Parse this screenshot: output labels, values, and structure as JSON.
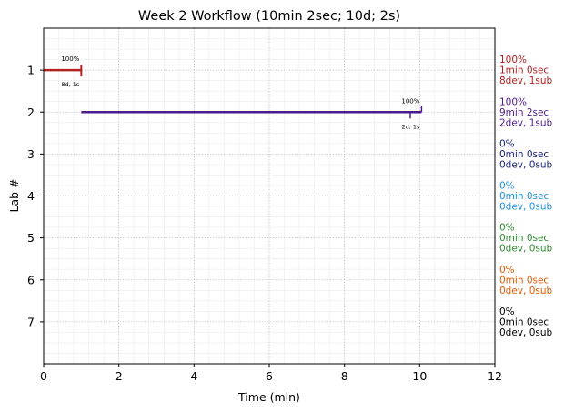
{
  "chart_data": {
    "type": "line",
    "title": "Week 2 Workflow (10min 2sec; 10d; 2s)",
    "xlabel": "Time (min)",
    "ylabel": "Lab #",
    "xlim": [
      0,
      12
    ],
    "ylim": [
      8,
      0
    ],
    "x_ticks": [
      "0",
      "2",
      "4",
      "6",
      "8",
      "10",
      "12"
    ],
    "y_ticks": [
      "1",
      "2",
      "3",
      "4",
      "5",
      "6",
      "7"
    ],
    "grid": true,
    "series": [
      {
        "lab": 1,
        "color": "#b22222",
        "segments": [
          [
            0,
            1.0
          ]
        ],
        "end_marker": 1.0,
        "pct_label": "100%",
        "detail_label": "8d, 1s",
        "summary": [
          "100%",
          "1min 0sec",
          "8dev, 1sub"
        ]
      },
      {
        "lab": 2,
        "color": "#4b1a8c",
        "segments": [
          [
            1.0,
            10.05
          ]
        ],
        "tick_marks": [
          9.75,
          10.05
        ],
        "pct_label": "100%",
        "detail_label": "2d, 1s",
        "summary": [
          "100%",
          "9min 2sec",
          "2dev, 1sub"
        ]
      },
      {
        "lab": 3,
        "color": "#1a237e",
        "segments": [],
        "summary": [
          "0%",
          "0min 0sec",
          "0dev, 0sub"
        ]
      },
      {
        "lab": 4,
        "color": "#1e90d6",
        "segments": [],
        "summary": [
          "0%",
          "0min 0sec",
          "0dev, 0sub"
        ]
      },
      {
        "lab": 5,
        "color": "#2e8b2e",
        "segments": [],
        "summary": [
          "0%",
          "0min 0sec",
          "0dev, 0sub"
        ]
      },
      {
        "lab": 6,
        "color": "#e05a00",
        "segments": [],
        "summary": [
          "0%",
          "0min 0sec",
          "0dev, 0sub"
        ]
      },
      {
        "lab": 7,
        "color": "#000000",
        "segments": [],
        "summary": [
          "0%",
          "0min 0sec",
          "0dev, 0sub"
        ]
      }
    ]
  }
}
